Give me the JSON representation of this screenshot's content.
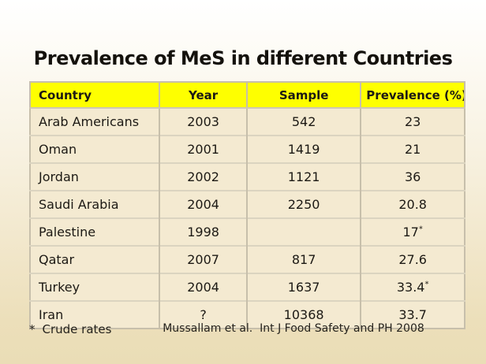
{
  "slide": {
    "title": "Prevalence of MeS in different Countries",
    "table": {
      "headers": [
        "Country",
        "Year",
        "Sample",
        "Prevalence (%)"
      ],
      "rows": [
        {
          "country": "Arab Americans",
          "year": "2003",
          "sample": "542",
          "prevalence": "23"
        },
        {
          "country": "Oman",
          "year": "2001",
          "sample": "1419",
          "prevalence": "21"
        },
        {
          "country": "Jordan",
          "year": "2002",
          "sample": "1121",
          "prevalence": "36"
        },
        {
          "country": "Saudi Arabia",
          "year": "2004",
          "sample": "2250",
          "prevalence": "20.8"
        },
        {
          "country": "Palestine",
          "year": "1998",
          "sample": "",
          "prevalence": "17*"
        },
        {
          "country": "Qatar",
          "year": "2007",
          "sample": "817",
          "prevalence": "27.6"
        },
        {
          "country": "Turkey",
          "year": "2004",
          "sample": "1637",
          "prevalence": "33.4*"
        },
        {
          "country": "Iran",
          "year": "?",
          "sample": "10368",
          "prevalence": "33.7"
        }
      ]
    },
    "footnote": {
      "symbol": "*",
      "text": "Crude rates"
    },
    "citation": "Mussallam et al.  Int J Food Safety and PH 2008",
    "colors": {
      "header_bg": "#feff00",
      "row_bg": "#f4ead1",
      "slide_bottom": "#eaddb6"
    }
  }
}
